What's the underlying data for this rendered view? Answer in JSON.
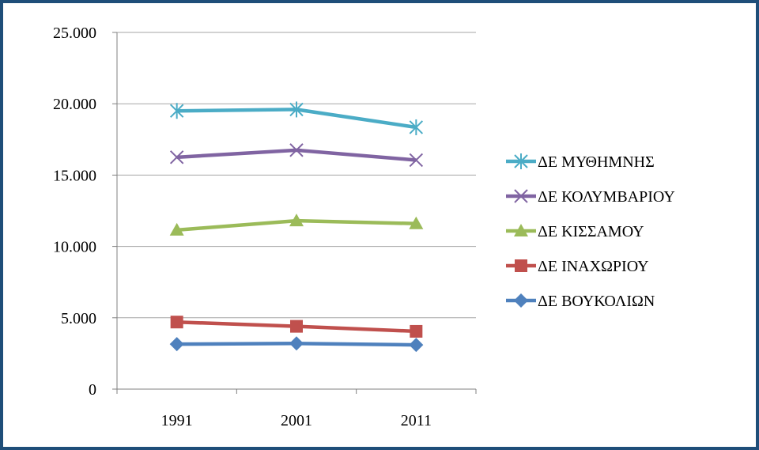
{
  "chart_data": {
    "type": "line",
    "title": "",
    "xlabel": "",
    "ylabel": "",
    "categories": [
      "1991",
      "2001",
      "2011"
    ],
    "ylim": [
      0,
      25000
    ],
    "yticks": [
      0,
      5000,
      10000,
      15000,
      20000,
      25000
    ],
    "ytick_labels": [
      "0",
      "5.000",
      "10.000",
      "15.000",
      "20.000",
      "25.000"
    ],
    "grid": true,
    "legend_position": "right",
    "series": [
      {
        "name": "ΔΕ ΜΥΘΗΜΝΗΣ",
        "color": "#4bacc6",
        "marker": "asterisk",
        "values": [
          19500,
          19600,
          18350
        ]
      },
      {
        "name": "ΔΕ ΚΟΛΥΜΒΑΡΙΟΥ",
        "color": "#8064a2",
        "marker": "x",
        "values": [
          16250,
          16750,
          16050
        ]
      },
      {
        "name": "ΔΕ ΚΙΣΣΑΜΟΥ",
        "color": "#9bbb59",
        "marker": "triangle",
        "values": [
          11150,
          11800,
          11600
        ]
      },
      {
        "name": "ΔΕ ΙΝΑΧΩΡΙΟΥ",
        "color": "#c0504d",
        "marker": "square",
        "values": [
          4700,
          4400,
          4050
        ]
      },
      {
        "name": "ΔΕ ΒΟΥΚΟΛΙΩΝ",
        "color": "#4f81bd",
        "marker": "diamond",
        "values": [
          3150,
          3200,
          3100
        ]
      }
    ]
  }
}
